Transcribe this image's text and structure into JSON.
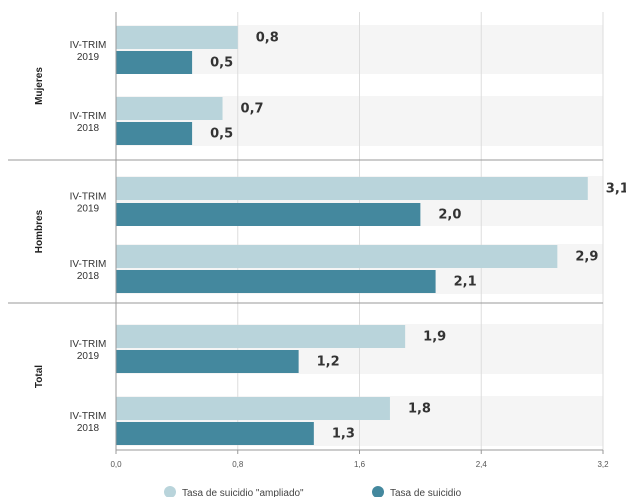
{
  "chart_data": {
    "type": "bar",
    "orientation": "horizontal",
    "title": "",
    "xlabel": "",
    "ylabel": "",
    "xlim": [
      0,
      3.2
    ],
    "ticks": [
      "0,0",
      "0,8",
      "1,6",
      "2,4",
      "3,2"
    ],
    "tick_values": [
      0,
      0.8,
      1.6,
      2.4,
      3.2
    ],
    "grid": true,
    "legend_position": "bottom",
    "series": [
      {
        "name": "Tasa de suicidio \"ampliado\"",
        "color": "#b9d4db"
      },
      {
        "name": "Tasa de suicidio",
        "color": "#44889e"
      }
    ],
    "groups": [
      {
        "name": "Mujeres",
        "categories": [
          {
            "label_line1": "IV-TRIM",
            "label_line2": "2019",
            "values": [
              0.8,
              0.5
            ],
            "value_labels": [
              "0,8",
              "0,5"
            ]
          },
          {
            "label_line1": "IV-TRIM",
            "label_line2": "2018",
            "values": [
              0.7,
              0.5
            ],
            "value_labels": [
              "0,7",
              "0,5"
            ]
          }
        ]
      },
      {
        "name": "Hombres",
        "categories": [
          {
            "label_line1": "IV-TRIM",
            "label_line2": "2019",
            "values": [
              3.1,
              2.0
            ],
            "value_labels": [
              "3,1",
              "2,0"
            ]
          },
          {
            "label_line1": "IV-TRIM",
            "label_line2": "2018",
            "values": [
              2.9,
              2.1
            ],
            "value_labels": [
              "2,9",
              "2,1"
            ]
          }
        ]
      },
      {
        "name": "Total",
        "categories": [
          {
            "label_line1": "IV-TRIM",
            "label_line2": "2019",
            "values": [
              1.9,
              1.2
            ],
            "value_labels": [
              "1,9",
              "1,2"
            ]
          },
          {
            "label_line1": "IV-TRIM",
            "label_line2": "2018",
            "values": [
              1.8,
              1.3
            ],
            "value_labels": [
              "1,8",
              "1,3"
            ]
          }
        ]
      }
    ]
  }
}
